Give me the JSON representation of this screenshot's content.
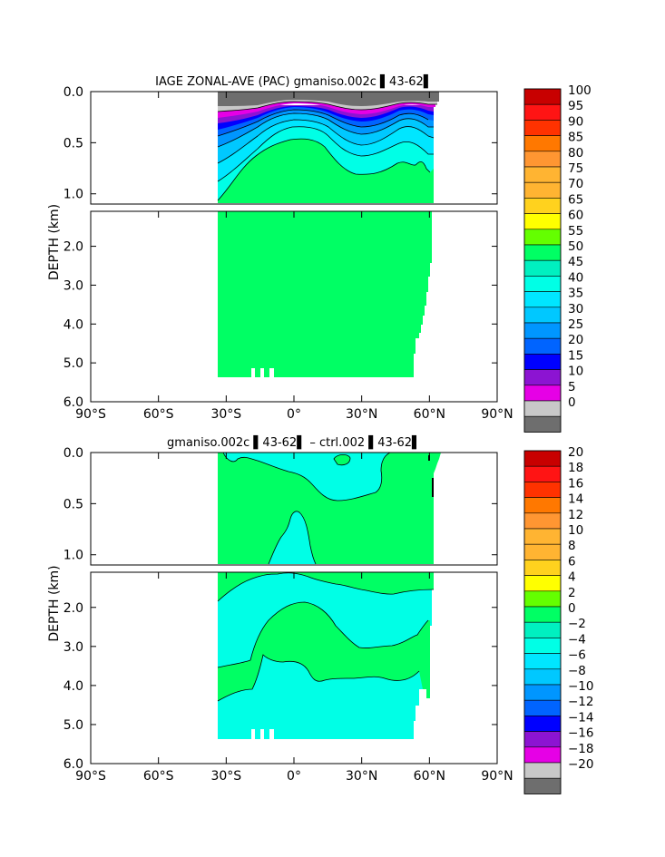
{
  "colors": {
    "grey": "#6e6e6e",
    "lightgrey": "#c8c8c8",
    "magenta": "#e600e6",
    "purple": "#8c14d2",
    "blue": "#0000ff",
    "mblue": "#0064ff",
    "azure": "#0096ff",
    "sky": "#00c8ff",
    "cyan1": "#00e6ff",
    "cyan2": "#00ffe6",
    "aqua": "#00f0c0",
    "green": "#00ff64",
    "lime": "#64ff00",
    "yellow": "#ffff00",
    "gold": "#ffd21e",
    "lorange": "#ffb432",
    "orange": "#ff9632",
    "dorange": "#ff7800",
    "red": "#ff3200",
    "rred": "#ff1414",
    "dred": "#c80000"
  },
  "chart_data": [
    {
      "type": "heatmap",
      "title": "IAGE ZONAL-AVE (PAC) gmaniso.002c ▌43-62▌",
      "ylabel": "DEPTH (km)",
      "x_ticks": [
        "90°S",
        "60°S",
        "30°S",
        "0°",
        "30°N",
        "60°N",
        "90°N"
      ],
      "x_tick_values": [
        -90,
        -60,
        -30,
        0,
        30,
        60,
        90
      ],
      "y_ticks_upper": [
        "0.0",
        "0.5",
        "1.0"
      ],
      "y_ticks_upper_values": [
        0.0,
        0.5,
        1.0
      ],
      "y_ticks_lower": [
        "2.0",
        "3.0",
        "4.0",
        "5.0",
        "6.0"
      ],
      "y_ticks_lower_values": [
        2.0,
        3.0,
        4.0,
        5.0,
        6.0
      ],
      "xlim": [
        -90,
        90
      ],
      "ylim_upper": [
        0,
        1.1
      ],
      "ylim_lower": [
        1.1,
        6.0
      ],
      "data_extent_lat": [
        -34,
        62
      ],
      "colorbar_labels": [
        "100",
        "95",
        "90",
        "85",
        "80",
        "75",
        "70",
        "65",
        "60",
        "55",
        "50",
        "45",
        "40",
        "35",
        "30",
        "25",
        "20",
        "15",
        "10",
        "5",
        "0"
      ],
      "colorbar_values": [
        100,
        95,
        90,
        85,
        80,
        75,
        70,
        65,
        60,
        55,
        50,
        45,
        40,
        35,
        30,
        25,
        20,
        15,
        10,
        5,
        0
      ],
      "colorbar_colors": [
        "dred",
        "rred",
        "red",
        "dorange",
        "orange",
        "lorange",
        "lorange",
        "gold",
        "yellow",
        "lime",
        "green",
        "aqua",
        "cyan2",
        "cyan1",
        "sky",
        "azure",
        "mblue",
        "blue",
        "purple",
        "magenta",
        "lightgrey",
        "grey"
      ]
    },
    {
      "type": "heatmap",
      "title": "gmaniso.002c ▌43-62▌ – ctrl.002 ▌43-62▌",
      "ylabel": "DEPTH (km)",
      "x_ticks": [
        "90°S",
        "60°S",
        "30°S",
        "0°",
        "30°N",
        "60°N",
        "90°N"
      ],
      "x_tick_values": [
        -90,
        -60,
        -30,
        0,
        30,
        60,
        90
      ],
      "y_ticks_upper": [
        "0.0",
        "0.5",
        "1.0"
      ],
      "y_ticks_upper_values": [
        0.0,
        0.5,
        1.0
      ],
      "y_ticks_lower": [
        "2.0",
        "3.0",
        "4.0",
        "5.0",
        "6.0"
      ],
      "y_ticks_lower_values": [
        2.0,
        3.0,
        4.0,
        5.0,
        6.0
      ],
      "xlim": [
        -90,
        90
      ],
      "ylim_upper": [
        0,
        1.1
      ],
      "ylim_lower": [
        1.1,
        6.0
      ],
      "data_extent_lat": [
        -34,
        62
      ],
      "colorbar_labels": [
        "20",
        "18",
        "16",
        "14",
        "12",
        "10",
        "8",
        "6",
        "4",
        "2",
        "0",
        "−2",
        "−4",
        "−6",
        "−8",
        "−10",
        "−12",
        "−14",
        "−16",
        "−18",
        "−20"
      ],
      "colorbar_values": [
        20,
        18,
        16,
        14,
        12,
        10,
        8,
        6,
        4,
        2,
        0,
        -2,
        -4,
        -6,
        -8,
        -10,
        -12,
        -14,
        -16,
        -18,
        -20
      ],
      "colorbar_colors": [
        "dred",
        "rred",
        "red",
        "dorange",
        "orange",
        "lorange",
        "lorange",
        "gold",
        "yellow",
        "lime",
        "green",
        "aqua",
        "cyan2",
        "cyan1",
        "sky",
        "azure",
        "mblue",
        "blue",
        "purple",
        "magenta",
        "lightgrey",
        "grey"
      ]
    }
  ]
}
